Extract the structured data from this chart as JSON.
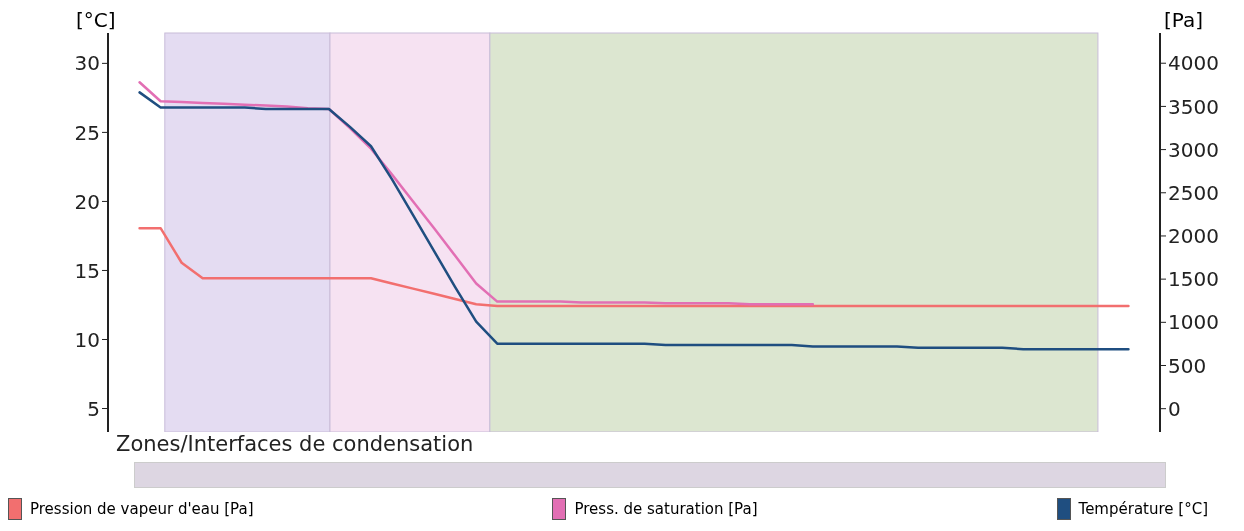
{
  "chart_data": {
    "type": "line",
    "ylabel": "[°C]",
    "y2label": "[Pa]",
    "annotations": [
      "Zones/Interfaces de condensation"
    ],
    "categories": [
      null,
      null,
      null,
      null,
      null,
      null,
      null,
      null,
      null,
      null,
      null,
      null,
      null,
      null,
      null,
      null,
      null,
      null,
      null,
      null,
      null,
      null,
      null,
      null,
      null,
      null,
      null,
      null,
      null,
      null,
      null,
      null,
      null,
      null,
      null,
      null,
      null,
      null,
      null,
      null,
      null,
      null,
      null,
      null,
      null,
      null,
      null,
      null
    ],
    "tick_labels": "y",
    "ylim": [
      3.3,
      32.2
    ],
    "yticks": [
      5,
      10,
      15,
      20,
      25,
      30
    ],
    "y2lim": [
      -270,
      4350
    ],
    "y2ticks": [
      0,
      500,
      1000,
      1500,
      2000,
      2500,
      3000,
      3500,
      4000
    ],
    "legend": "bottom",
    "marker": "none",
    "line_style": "solid",
    "series": [
      {
        "name": "Pression de vapeur d'eau [Pa]",
        "color": "#f26f6f",
        "axis": "y2",
        "values": [
          2090,
          2090,
          1690,
          1510,
          1510,
          1510,
          1510,
          1510,
          1510,
          1510,
          1510,
          1510,
          1450,
          1390,
          1330,
          1270,
          1210,
          1190,
          1190,
          1190,
          1190,
          1190,
          1190,
          1190,
          1190,
          1190,
          1190,
          1190,
          1190,
          1190,
          1190,
          1190,
          1190,
          1190,
          1190,
          1190,
          1190,
          1190,
          1190,
          1190,
          1190,
          1190,
          1190,
          1190,
          1190,
          1190,
          1190,
          1190
        ]
      },
      {
        "name": "Press. de saturation [Pa]",
        "color": "#e26fb4",
        "axis": "y2",
        "values": [
          3780,
          3560,
          3550,
          3540,
          3530,
          3520,
          3510,
          3500,
          3480,
          3470,
          3250,
          3010,
          2710,
          2400,
          2090,
          1770,
          1450,
          1240,
          1240,
          1240,
          1240,
          1230,
          1230,
          1230,
          1230,
          1220,
          1220,
          1220,
          1220,
          1210,
          1210,
          1210,
          1210,
          null,
          null,
          null,
          null,
          null,
          null,
          null,
          null,
          null,
          null,
          null,
          null,
          null,
          null,
          null
        ]
      },
      {
        "name": "Température [°C]",
        "color": "#1f4e80",
        "axis": "y",
        "values": [
          27.9,
          26.8,
          26.8,
          26.8,
          26.8,
          26.8,
          26.7,
          26.7,
          26.7,
          26.7,
          25.4,
          24.0,
          21.6,
          19.0,
          16.4,
          13.8,
          11.3,
          9.7,
          9.7,
          9.7,
          9.7,
          9.7,
          9.7,
          9.7,
          9.7,
          9.6,
          9.6,
          9.6,
          9.6,
          9.6,
          9.6,
          9.6,
          9.5,
          9.5,
          9.5,
          9.5,
          9.5,
          9.4,
          9.4,
          9.4,
          9.4,
          9.4,
          9.3,
          9.3,
          9.3,
          9.3,
          9.3,
          9.3
        ]
      }
    ]
  }
}
